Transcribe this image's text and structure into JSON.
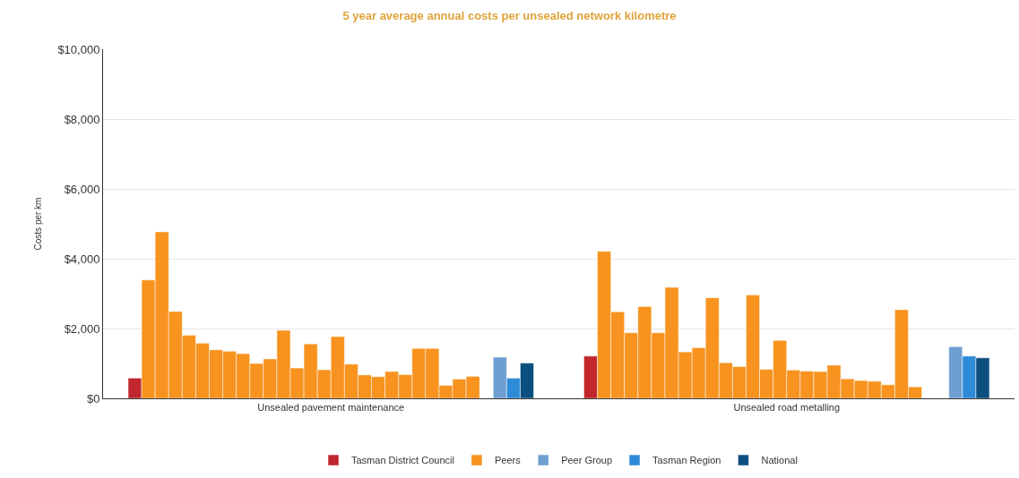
{
  "chart_data": {
    "type": "bar",
    "title": "5 year average annual costs per unsealed network kilometre",
    "ylabel": "Costs per km",
    "categories": [
      "Unsealed pavement maintenance",
      "Unsealed road metalling"
    ],
    "ylim": [
      0,
      10000
    ],
    "yticks": [
      {
        "value": 0,
        "label": "$0"
      },
      {
        "value": 2000,
        "label": "$2,000"
      },
      {
        "value": 4000,
        "label": "$4,000"
      },
      {
        "value": 6000,
        "label": "$6,000"
      },
      {
        "value": 8000,
        "label": "$8,000"
      },
      {
        "value": 10000,
        "label": "$10,000"
      }
    ],
    "grid": "y",
    "legend": "bottom",
    "series": [
      {
        "name": "Tasman District Council",
        "color": "#c1272d",
        "values": [
          580,
          1210
        ]
      },
      {
        "name": "Peers",
        "color": "#f7931e",
        "values": [
          3390,
          4210
        ]
      },
      {
        "color": "#f7931e",
        "values": [
          4770,
          2480
        ]
      },
      {
        "color": "#f7931e",
        "values": [
          2490,
          1880
        ]
      },
      {
        "color": "#f7931e",
        "values": [
          1810,
          2630
        ]
      },
      {
        "color": "#f7931e",
        "values": [
          1580,
          1880
        ]
      },
      {
        "color": "#f7931e",
        "values": [
          1390,
          3180
        ]
      },
      {
        "color": "#f7931e",
        "values": [
          1350,
          1330
        ]
      },
      {
        "color": "#f7931e",
        "values": [
          1280,
          1450
        ]
      },
      {
        "color": "#f7931e",
        "values": [
          1000,
          2880
        ]
      },
      {
        "color": "#f7931e",
        "values": [
          1130,
          1020
        ]
      },
      {
        "color": "#f7931e",
        "values": [
          1950,
          910
        ]
      },
      {
        "color": "#f7931e",
        "values": [
          870,
          2960
        ]
      },
      {
        "color": "#f7931e",
        "values": [
          1560,
          830
        ]
      },
      {
        "color": "#f7931e",
        "values": [
          820,
          1660
        ]
      },
      {
        "color": "#f7931e",
        "values": [
          1770,
          810
        ]
      },
      {
        "color": "#f7931e",
        "values": [
          980,
          780
        ]
      },
      {
        "color": "#f7931e",
        "values": [
          670,
          770
        ]
      },
      {
        "color": "#f7931e",
        "values": [
          620,
          950
        ]
      },
      {
        "color": "#f7931e",
        "values": [
          770,
          560
        ]
      },
      {
        "color": "#f7931e",
        "values": [
          680,
          510
        ]
      },
      {
        "color": "#f7931e",
        "values": [
          1430,
          490
        ]
      },
      {
        "color": "#f7931e",
        "values": [
          1430,
          390
        ]
      },
      {
        "color": "#f7931e",
        "values": [
          370,
          2540
        ]
      },
      {
        "color": "#f7931e",
        "values": [
          550,
          330
        ]
      },
      {
        "color": "#f7931e",
        "values": [
          630,
          null
        ]
      },
      {
        "color": "#f7931e",
        "values": [
          null,
          null
        ]
      },
      {
        "name": "Peer Group",
        "color": "#6e9fd1",
        "values": [
          1180,
          1480
        ]
      },
      {
        "name": "Tasman Region",
        "color": "#2e8bd8",
        "values": [
          580,
          1210
        ]
      },
      {
        "name": "National",
        "color": "#0b4f7e",
        "values": [
          1010,
          1160
        ]
      }
    ]
  }
}
